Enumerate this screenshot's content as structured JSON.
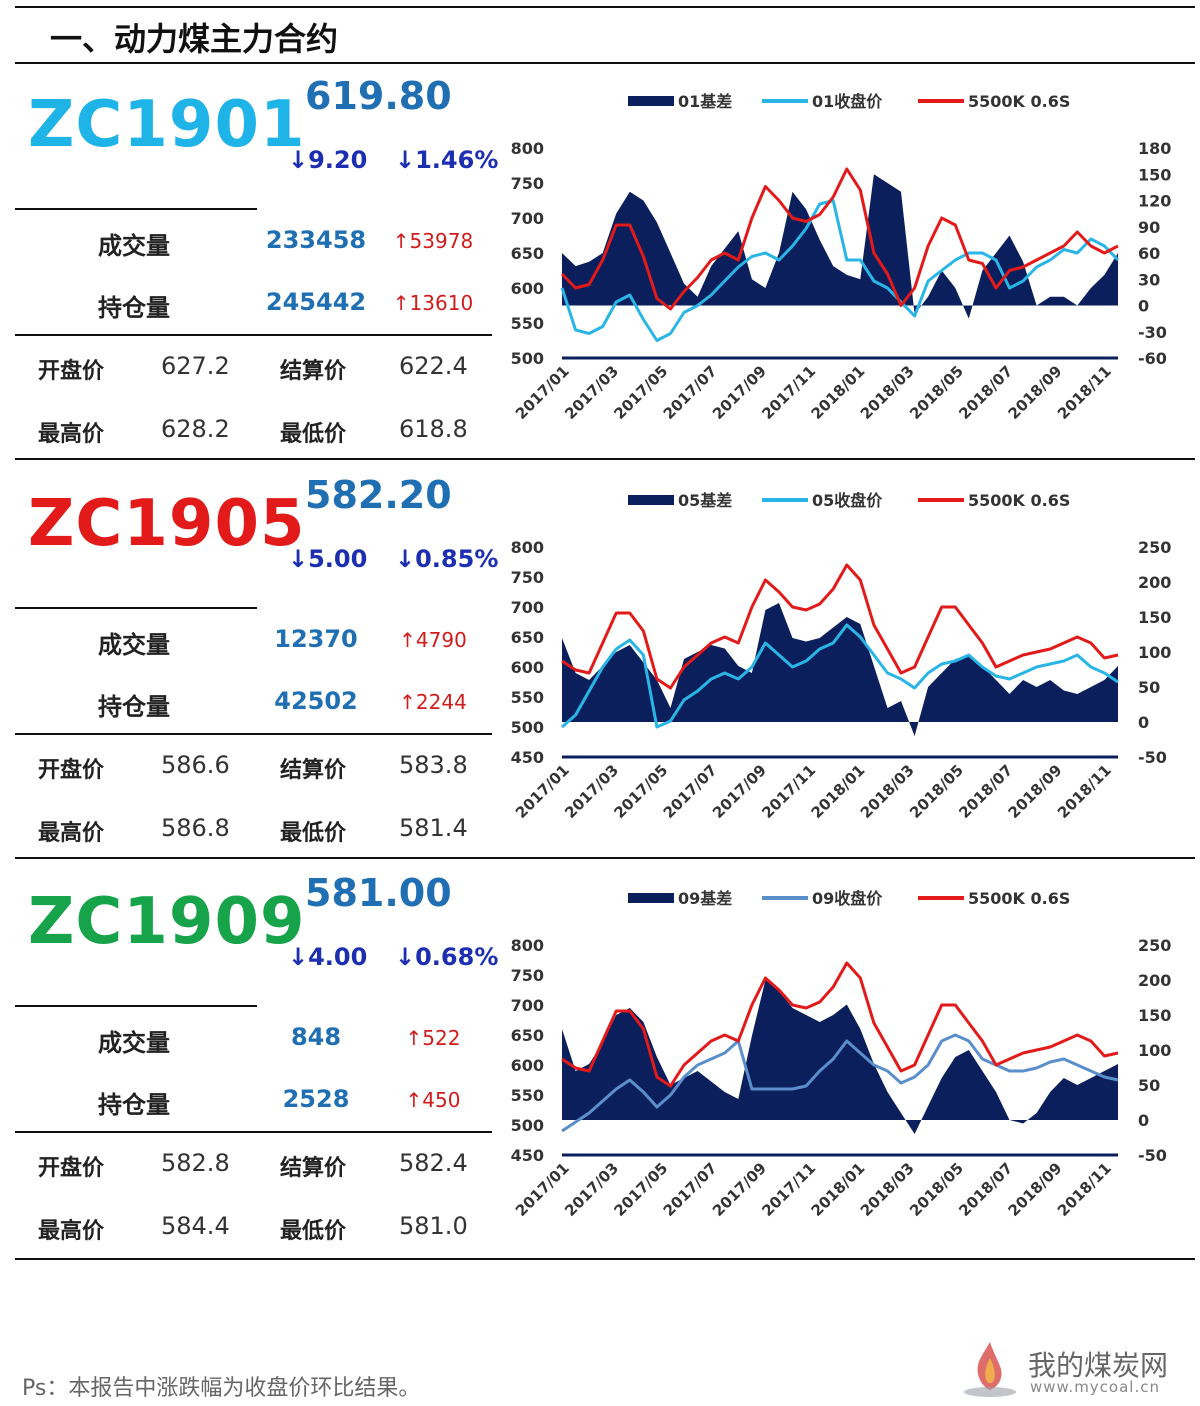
{
  "page_title": "一、动力煤主力合约",
  "footnote": "Ps：本报告中涨跌幅为收盘价环比结果。",
  "logo": {
    "name": "我的煤炭网",
    "url": "www.mycoal.cn"
  },
  "labels": {
    "volume": "成交量",
    "open_interest": "持仓量",
    "open": "开盘价",
    "settle": "结算价",
    "high": "最高价",
    "low": "最低价"
  },
  "contracts": [
    {
      "code": "ZC1901",
      "code_color": "#1fb4e8",
      "price": "619.80",
      "change": "↓9.20",
      "change_pct": "↓1.46%",
      "volume": "233458",
      "volume_delta": "↑53978",
      "open_interest": "245442",
      "oi_delta": "↑13610",
      "open": "627.2",
      "settle": "622.4",
      "high": "628.2",
      "low": "618.8"
    },
    {
      "code": "ZC1905",
      "code_color": "#e21a1a",
      "price": "582.20",
      "change": "↓5.00",
      "change_pct": "↓0.85%",
      "volume": "12370",
      "volume_delta": "↑4790",
      "open_interest": "42502",
      "oi_delta": "↑2244",
      "open": "586.6",
      "settle": "583.8",
      "high": "586.8",
      "low": "581.4"
    },
    {
      "code": "ZC1909",
      "code_color": "#16a34a",
      "price": "581.00",
      "change": "↓4.00",
      "change_pct": "↓0.68%",
      "volume": "848",
      "volume_delta": "↑522",
      "open_interest": "2528",
      "oi_delta": "↑450",
      "open": "582.8",
      "settle": "582.4",
      "high": "584.4",
      "low": "581.0"
    }
  ],
  "chart_data": [
    {
      "type": "area+line",
      "colors": {
        "basis": "#0b1f5c",
        "close": "#29b6e6",
        "spot": "#e21a1a"
      },
      "legend": [
        "01基差",
        "01收盘价",
        "5500K 0.6S"
      ],
      "x_ticks": [
        "2017/01",
        "2017/03",
        "2017/05",
        "2017/07",
        "2017/09",
        "2017/11",
        "2018/01",
        "2018/03",
        "2018/05",
        "2018/07",
        "2018/09",
        "2018/11"
      ],
      "y_left": {
        "min": 500,
        "max": 800,
        "ticks": [
          "800",
          "750",
          "700",
          "650",
          "600",
          "550",
          "500"
        ]
      },
      "y_right": {
        "min": -60,
        "max": 180,
        "ticks": [
          "180",
          "150",
          "120",
          "90",
          "60",
          "30",
          "0",
          "-30",
          "-60"
        ]
      },
      "series": [
        {
          "name": "01基差",
          "axis": "right",
          "values": [
            60,
            45,
            50,
            60,
            105,
            130,
            120,
            95,
            60,
            25,
            10,
            45,
            65,
            85,
            30,
            20,
            60,
            130,
            110,
            75,
            45,
            35,
            30,
            150,
            140,
            130,
            -10,
            10,
            40,
            20,
            -15,
            40,
            60,
            80,
            50,
            0,
            10,
            10,
            0,
            20,
            35,
            60
          ]
        },
        {
          "name": "01收盘价",
          "axis": "left",
          "values": [
            600,
            540,
            535,
            545,
            580,
            590,
            555,
            525,
            535,
            565,
            575,
            590,
            610,
            630,
            645,
            650,
            640,
            660,
            685,
            720,
            725,
            640,
            640,
            610,
            600,
            580,
            560,
            610,
            625,
            640,
            650,
            650,
            640,
            600,
            610,
            630,
            640,
            655,
            650,
            670,
            660,
            640
          ]
        },
        {
          "name": "5500K 0.6S",
          "axis": "left",
          "values": [
            620,
            600,
            605,
            640,
            690,
            690,
            645,
            585,
            570,
            595,
            615,
            640,
            650,
            640,
            700,
            745,
            725,
            700,
            695,
            705,
            730,
            770,
            740,
            650,
            620,
            575,
            600,
            660,
            700,
            690,
            640,
            635,
            600,
            625,
            630,
            640,
            650,
            660,
            680,
            660,
            650,
            660
          ]
        }
      ]
    },
    {
      "type": "area+line",
      "colors": {
        "basis": "#0b1f5c",
        "close": "#29b6e6",
        "spot": "#e21a1a"
      },
      "legend": [
        "05基差",
        "05收盘价",
        "5500K 0.6S"
      ],
      "x_ticks": [
        "2017/01",
        "2017/03",
        "2017/05",
        "2017/07",
        "2017/09",
        "2017/11",
        "2018/01",
        "2018/03",
        "2018/05",
        "2018/07",
        "2018/09",
        "2018/11"
      ],
      "y_left": {
        "min": 450,
        "max": 800,
        "ticks": [
          "800",
          "750",
          "700",
          "650",
          "600",
          "550",
          "500",
          "450"
        ]
      },
      "y_right": {
        "min": -50,
        "max": 250,
        "ticks": [
          "250",
          "200",
          "150",
          "100",
          "50",
          "0",
          "-50"
        ]
      },
      "series": [
        {
          "name": "05基差",
          "axis": "right",
          "values": [
            120,
            70,
            60,
            80,
            100,
            110,
            85,
            60,
            20,
            90,
            100,
            110,
            105,
            80,
            70,
            160,
            170,
            120,
            115,
            120,
            135,
            150,
            140,
            80,
            20,
            30,
            -20,
            50,
            70,
            90,
            95,
            80,
            60,
            40,
            60,
            50,
            60,
            45,
            40,
            50,
            60,
            80
          ]
        },
        {
          "name": "05收盘价",
          "axis": "left",
          "values": [
            500,
            520,
            560,
            600,
            630,
            645,
            620,
            500,
            510,
            545,
            560,
            580,
            590,
            580,
            600,
            640,
            620,
            600,
            610,
            630,
            640,
            670,
            650,
            620,
            590,
            580,
            565,
            590,
            605,
            610,
            620,
            600,
            585,
            580,
            590,
            600,
            605,
            610,
            620,
            600,
            590,
            575
          ]
        },
        {
          "name": "5500K 0.6S",
          "axis": "left",
          "values": [
            610,
            595,
            590,
            640,
            690,
            690,
            660,
            580,
            565,
            600,
            620,
            640,
            650,
            640,
            700,
            745,
            725,
            700,
            695,
            705,
            730,
            770,
            745,
            670,
            630,
            590,
            600,
            650,
            700,
            700,
            670,
            640,
            600,
            610,
            620,
            625,
            630,
            640,
            650,
            640,
            615,
            620
          ]
        }
      ]
    },
    {
      "type": "area+line",
      "colors": {
        "basis": "#0b1f5c",
        "close": "#5a8fcc",
        "spot": "#e21a1a"
      },
      "legend": [
        "09基差",
        "09收盘价",
        "5500K 0.6S"
      ],
      "x_ticks": [
        "2017/01",
        "2017/03",
        "2017/05",
        "2017/07",
        "2017/09",
        "2017/11",
        "2018/01",
        "2018/03",
        "2018/05",
        "2018/07",
        "2018/09",
        "2018/11"
      ],
      "y_left": {
        "min": 450,
        "max": 800,
        "ticks": [
          "800",
          "750",
          "700",
          "650",
          "600",
          "550",
          "500",
          "450"
        ]
      },
      "y_right": {
        "min": -50,
        "max": 250,
        "ticks": [
          "250",
          "200",
          "150",
          "100",
          "50",
          "0",
          "-50"
        ]
      },
      "series": [
        {
          "name": "09基差",
          "axis": "right",
          "values": [
            130,
            70,
            80,
            110,
            150,
            160,
            140,
            90,
            50,
            60,
            70,
            55,
            40,
            30,
            120,
            200,
            185,
            160,
            150,
            140,
            150,
            165,
            130,
            80,
            40,
            10,
            -20,
            20,
            60,
            90,
            100,
            70,
            40,
            0,
            -5,
            10,
            40,
            60,
            50,
            60,
            70,
            80
          ]
        },
        {
          "name": "09收盘价",
          "axis": "left",
          "values": [
            490,
            505,
            520,
            540,
            560,
            575,
            555,
            530,
            550,
            580,
            600,
            610,
            620,
            640,
            560,
            560,
            560,
            560,
            565,
            590,
            610,
            640,
            620,
            600,
            590,
            570,
            580,
            600,
            640,
            650,
            640,
            610,
            600,
            590,
            590,
            595,
            605,
            610,
            600,
            590,
            580,
            575
          ]
        },
        {
          "name": "5500K 0.6S",
          "axis": "left",
          "values": [
            610,
            595,
            590,
            640,
            690,
            690,
            660,
            580,
            565,
            600,
            620,
            640,
            650,
            640,
            700,
            745,
            725,
            700,
            695,
            705,
            730,
            770,
            745,
            670,
            630,
            590,
            600,
            650,
            700,
            700,
            670,
            640,
            600,
            610,
            620,
            625,
            630,
            640,
            650,
            640,
            615,
            620
          ]
        }
      ]
    }
  ]
}
